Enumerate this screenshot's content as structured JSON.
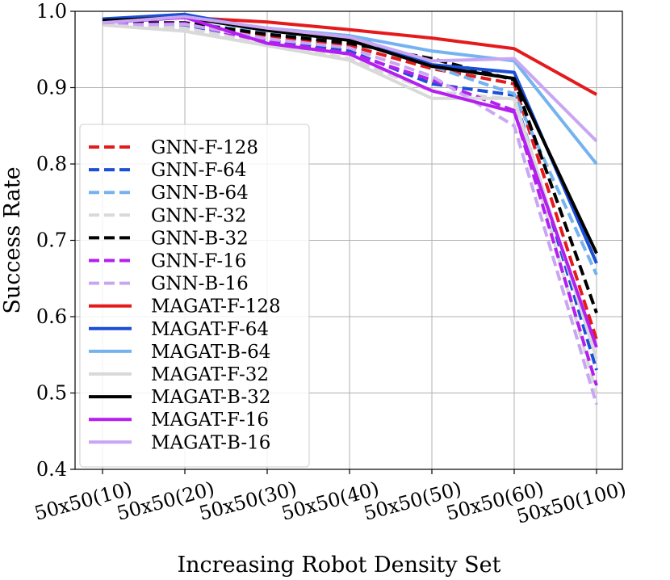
{
  "chart_data": {
    "type": "line",
    "title": "",
    "xlabel": "Increasing Robot Density Set",
    "ylabel": "Success Rate",
    "ylim": [
      0.4,
      1.0
    ],
    "yticks": [
      "0.4",
      "0.5",
      "0.6",
      "0.7",
      "0.8",
      "0.9",
      "1.0"
    ],
    "categories": [
      "50x50(10)",
      "50x50(20)",
      "50x50(30)",
      "50x50(40)",
      "50x50(50)",
      "50x50(60)",
      "50x50(100)"
    ],
    "grid": true,
    "legend_position": "center-left",
    "series": [
      {
        "name": "GNN-F-128",
        "color": "#e41a1c",
        "style": "dashed",
        "values": [
          0.983,
          0.982,
          0.968,
          0.955,
          0.925,
          0.905,
          0.57
        ]
      },
      {
        "name": "GNN-F-64",
        "color": "#1a4fd6",
        "style": "dashed",
        "values": [
          0.983,
          0.979,
          0.962,
          0.948,
          0.905,
          0.89,
          0.53
        ]
      },
      {
        "name": "GNN-B-64",
        "color": "#74b3f0",
        "style": "dashed",
        "values": [
          0.985,
          0.985,
          0.972,
          0.962,
          0.928,
          0.892,
          0.655
        ]
      },
      {
        "name": "GNN-F-32",
        "color": "#d9d9d9",
        "style": "dashed",
        "values": [
          0.985,
          0.978,
          0.958,
          0.938,
          0.895,
          0.885,
          0.5
        ]
      },
      {
        "name": "GNN-B-32",
        "color": "#000000",
        "style": "dashed",
        "values": [
          0.985,
          0.985,
          0.97,
          0.958,
          0.938,
          0.91,
          0.605
        ]
      },
      {
        "name": "GNN-F-16",
        "color": "#b41ff0",
        "style": "dashed",
        "values": [
          0.982,
          0.984,
          0.96,
          0.945,
          0.91,
          0.87,
          0.51
        ]
      },
      {
        "name": "GNN-B-16",
        "color": "#c9a6f2",
        "style": "dashed",
        "values": [
          0.982,
          0.983,
          0.964,
          0.952,
          0.915,
          0.85,
          0.485
        ]
      },
      {
        "name": "MAGAT-F-128",
        "color": "#e41a1c",
        "style": "solid",
        "values": [
          0.99,
          0.992,
          0.986,
          0.976,
          0.965,
          0.951,
          0.891
        ]
      },
      {
        "name": "MAGAT-F-64",
        "color": "#1a4fd6",
        "style": "solid",
        "values": [
          0.99,
          0.996,
          0.976,
          0.968,
          0.93,
          0.92,
          0.67
        ]
      },
      {
        "name": "MAGAT-B-64",
        "color": "#74b3f0",
        "style": "solid",
        "values": [
          0.988,
          0.992,
          0.978,
          0.968,
          0.948,
          0.935,
          0.8
        ]
      },
      {
        "name": "MAGAT-F-32",
        "color": "#d9d9d9",
        "style": "solid",
        "values": [
          0.982,
          0.974,
          0.955,
          0.936,
          0.886,
          0.886,
          0.545
        ]
      },
      {
        "name": "MAGAT-B-32",
        "color": "#000000",
        "style": "solid",
        "values": [
          0.988,
          0.992,
          0.975,
          0.962,
          0.928,
          0.912,
          0.683
        ]
      },
      {
        "name": "MAGAT-F-16",
        "color": "#b41ff0",
        "style": "solid",
        "values": [
          0.985,
          0.992,
          0.958,
          0.944,
          0.896,
          0.868,
          0.56
        ]
      },
      {
        "name": "MAGAT-B-16",
        "color": "#c9a6f2",
        "style": "solid",
        "values": [
          0.985,
          0.993,
          0.978,
          0.966,
          0.935,
          0.938,
          0.83
        ]
      }
    ]
  }
}
